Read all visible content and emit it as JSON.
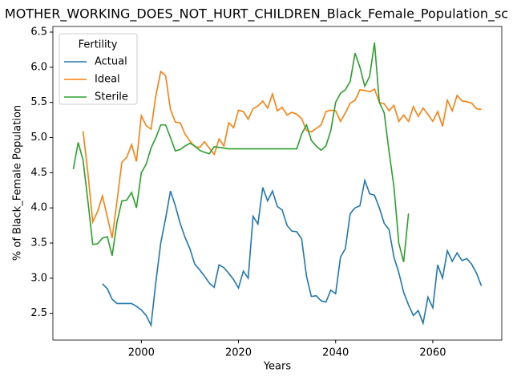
{
  "chart_data": {
    "type": "line",
    "title": "MOTHER_WORKING_DOES_NOT_HURT_CHILDREN_Black_Female_Population_sc",
    "x_label": "Years",
    "y_label": "% of Black_Female Population",
    "legend_title": "Fertility",
    "legend": "upper left",
    "grid": false,
    "x": [
      1986,
      1987,
      1988,
      1989,
      1990,
      1991,
      1992,
      1993,
      1994,
      1995,
      1996,
      1997,
      1998,
      1999,
      2000,
      2001,
      2002,
      2003,
      2004,
      2005,
      2006,
      2007,
      2008,
      2009,
      2010,
      2011,
      2012,
      2013,
      2014,
      2015,
      2016,
      2017,
      2018,
      2019,
      2020,
      2021,
      2022,
      2023,
      2024,
      2025,
      2026,
      2027,
      2028,
      2029,
      2030,
      2031,
      2032,
      2033,
      2034,
      2035,
      2036,
      2037,
      2038,
      2039,
      2040,
      2041,
      2042,
      2043,
      2044,
      2045,
      2046,
      2047,
      2048,
      2049,
      2050,
      2051,
      2052,
      2053,
      2054,
      2055,
      2056,
      2057,
      2058,
      2059,
      2060,
      2061,
      2062,
      2063,
      2064,
      2065,
      2066,
      2067,
      2068,
      2069,
      2070
    ],
    "series": [
      {
        "name": "Actual",
        "color": "#1f77b4",
        "values": [
          null,
          null,
          null,
          null,
          null,
          null,
          2.92,
          2.85,
          2.7,
          2.64,
          2.64,
          2.64,
          2.64,
          2.6,
          2.55,
          2.47,
          2.33,
          2.95,
          3.5,
          3.85,
          4.24,
          4.03,
          3.78,
          3.58,
          3.42,
          3.2,
          3.12,
          3.03,
          2.93,
          2.87,
          3.19,
          3.15,
          3.07,
          2.98,
          2.86,
          3.1,
          3.0,
          3.88,
          3.77,
          4.29,
          4.1,
          4.24,
          4.02,
          3.97,
          3.75,
          3.67,
          3.66,
          3.56,
          3.03,
          2.74,
          2.75,
          2.68,
          2.66,
          2.83,
          2.78,
          3.3,
          3.42,
          3.92,
          4.0,
          4.03,
          4.39,
          4.2,
          4.18,
          4.0,
          3.78,
          3.69,
          3.3,
          3.08,
          2.8,
          2.62,
          2.47,
          2.54,
          2.36,
          2.73,
          2.58,
          3.19,
          3.0,
          3.39,
          3.24,
          3.36,
          3.25,
          3.28,
          3.2,
          3.07,
          2.89
        ]
      },
      {
        "name": "Ideal",
        "color": "#ff7f0e",
        "values": [
          null,
          null,
          5.09,
          4.5,
          3.8,
          3.95,
          4.17,
          3.87,
          3.57,
          4.1,
          4.65,
          4.72,
          4.9,
          4.66,
          5.31,
          5.17,
          5.12,
          5.6,
          5.94,
          5.88,
          5.4,
          5.22,
          5.21,
          5.05,
          4.95,
          4.87,
          4.86,
          4.94,
          4.85,
          4.76,
          4.98,
          4.88,
          5.21,
          5.14,
          5.39,
          5.37,
          5.26,
          5.41,
          5.45,
          5.52,
          5.42,
          5.62,
          5.38,
          5.43,
          5.32,
          5.36,
          5.33,
          5.27,
          5.1,
          5.08,
          5.13,
          5.18,
          5.37,
          5.39,
          5.38,
          5.23,
          5.35,
          5.49,
          5.53,
          5.68,
          5.67,
          5.65,
          5.69,
          5.5,
          5.48,
          5.38,
          5.46,
          5.23,
          5.32,
          5.23,
          5.44,
          5.3,
          5.42,
          5.33,
          5.23,
          5.37,
          5.16,
          5.53,
          5.38,
          5.6,
          5.52,
          5.51,
          5.49,
          5.41,
          5.4
        ]
      },
      {
        "name": "Sterile",
        "color": "#2ca02c",
        "values": [
          4.55,
          4.93,
          4.68,
          4.1,
          3.48,
          3.49,
          3.57,
          3.59,
          3.32,
          3.8,
          4.1,
          4.11,
          4.22,
          4.0,
          4.5,
          4.62,
          4.85,
          5.0,
          5.18,
          5.18,
          5.0,
          4.81,
          4.83,
          4.88,
          4.92,
          4.88,
          4.82,
          4.79,
          4.77,
          4.87,
          4.86,
          4.85,
          4.84,
          4.84,
          4.84,
          4.84,
          4.84,
          4.84,
          4.84,
          4.84,
          4.84,
          4.84,
          4.84,
          4.84,
          4.84,
          4.84,
          4.84,
          5.05,
          5.18,
          4.96,
          4.88,
          4.82,
          4.88,
          5.1,
          5.5,
          5.63,
          5.68,
          5.8,
          6.2,
          6.0,
          5.73,
          5.87,
          6.35,
          5.5,
          5.35,
          4.8,
          4.3,
          3.5,
          3.23,
          3.92,
          null,
          null,
          null,
          null,
          null,
          null,
          null,
          null,
          null,
          null,
          null,
          null,
          null,
          null,
          null
        ]
      }
    ],
    "xlim": [
      1981.8,
      2074.2
    ],
    "xticks": [
      2000,
      2020,
      2040,
      2060
    ],
    "ylim": [
      2.12,
      6.58
    ],
    "yticks": [
      2.5,
      {
        "value": 3,
        "label": "3.0"
      },
      3.5,
      {
        "value": 4,
        "label": "4.0"
      },
      4.5,
      {
        "value": 5,
        "label": "5.0"
      },
      5.5,
      {
        "value": 6,
        "label": "6.0"
      },
      6.5
    ]
  }
}
